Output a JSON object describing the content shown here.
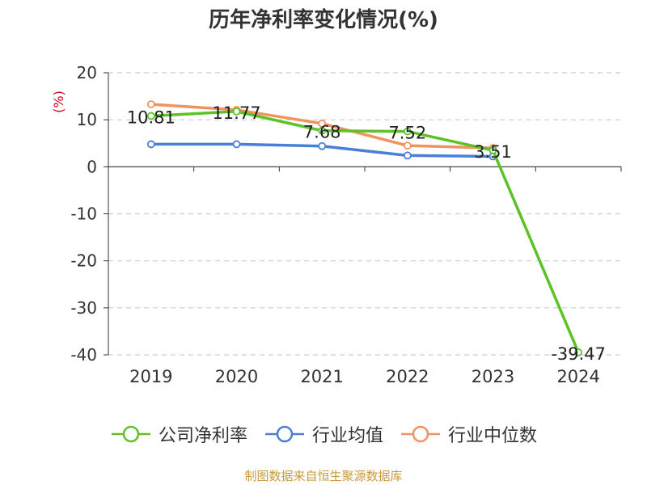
{
  "chart_data": {
    "type": "line",
    "title": "历年净利率变化情况(%)",
    "ylabel": "(%)",
    "xlabel": "",
    "categories": [
      "2019",
      "2020",
      "2021",
      "2022",
      "2023",
      "2024"
    ],
    "ylim": [
      -40,
      20
    ],
    "yticks": [
      20,
      10,
      0,
      -10,
      -20,
      -30,
      -40
    ],
    "grid": true,
    "legend_position": "bottom",
    "series": [
      {
        "name": "公司净利率",
        "color": "#5cc227",
        "values": [
          10.81,
          11.77,
          7.68,
          7.52,
          3.51,
          -39.47
        ],
        "labels": [
          "10.81",
          "11.77",
          "7.68",
          "7.52",
          "3.51",
          "-39.47"
        ]
      },
      {
        "name": "行业均值",
        "color": "#4a7fd9",
        "values": [
          4.8,
          4.8,
          4.4,
          2.4,
          2.2,
          null
        ]
      },
      {
        "name": "行业中位数",
        "color": "#f2935e",
        "values": [
          13.3,
          12.1,
          9.2,
          4.5,
          4.0,
          null
        ]
      }
    ]
  },
  "footer": {
    "source": "制图数据来自恒生聚源数据库"
  }
}
